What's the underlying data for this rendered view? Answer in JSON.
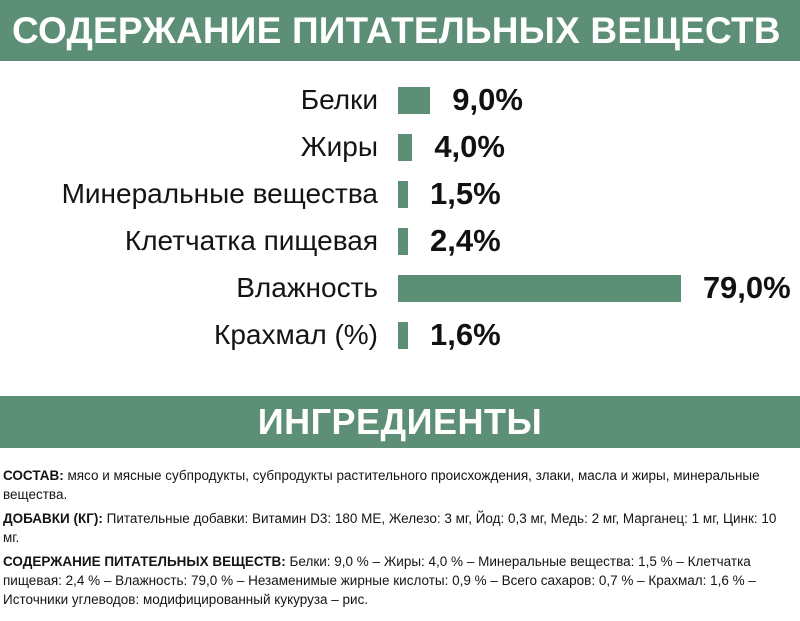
{
  "nutrients_header": "СОДЕРЖАНИЕ ПИТАТЕЛЬНЫХ ВЕЩЕСТВ",
  "ingredients_header": "ИНГРЕДИЕНТЫ",
  "chart_data": {
    "type": "bar",
    "orientation": "horizontal",
    "categories": [
      "Белки",
      "Жиры",
      "Минеральные вещества",
      "Клетчатка пищевая",
      "Влажность",
      "Крахмал (%)"
    ],
    "values": [
      9.0,
      4.0,
      1.5,
      2.4,
      79.0,
      1.6
    ],
    "value_labels": [
      "9,0%",
      "4,0%",
      "1,5%",
      "2,4%",
      "79,0%",
      "1,6%"
    ],
    "color": "#5d8f76"
  },
  "composition": {
    "label": "СОСТАВ:",
    "text": " мясо и мясные субпродукты, субпродукты растительного происхождения, злаки, масла и жиры, минеральные вещества."
  },
  "additives": {
    "label": "ДОБАВКИ (КГ):",
    "text": " Питательные добавки: Витамин D3: 180 МЕ, Железо: 3 мг, Йод: 0,3 мг, Медь: 2 мг, Марганец: 1 мг, Цинк: 10 мг."
  },
  "nutrient_content": {
    "label": "СОДЕРЖАНИЕ ПИТАТЕЛЬНЫХ ВЕЩЕСТВ:",
    "text": " Белки: 9,0 % – Жиры: 4,0 % – Минеральные вещества: 1,5 % – Клетчатка пищевая: 2,4 % – Влажность: 79,0 % – Незаменимые жирные кислоты: 0,9 % – Всего сахаров: 0,7 % – Крахмал: 1,6 % – Источники углеводов: модифицированный кукуруза – рис."
  }
}
